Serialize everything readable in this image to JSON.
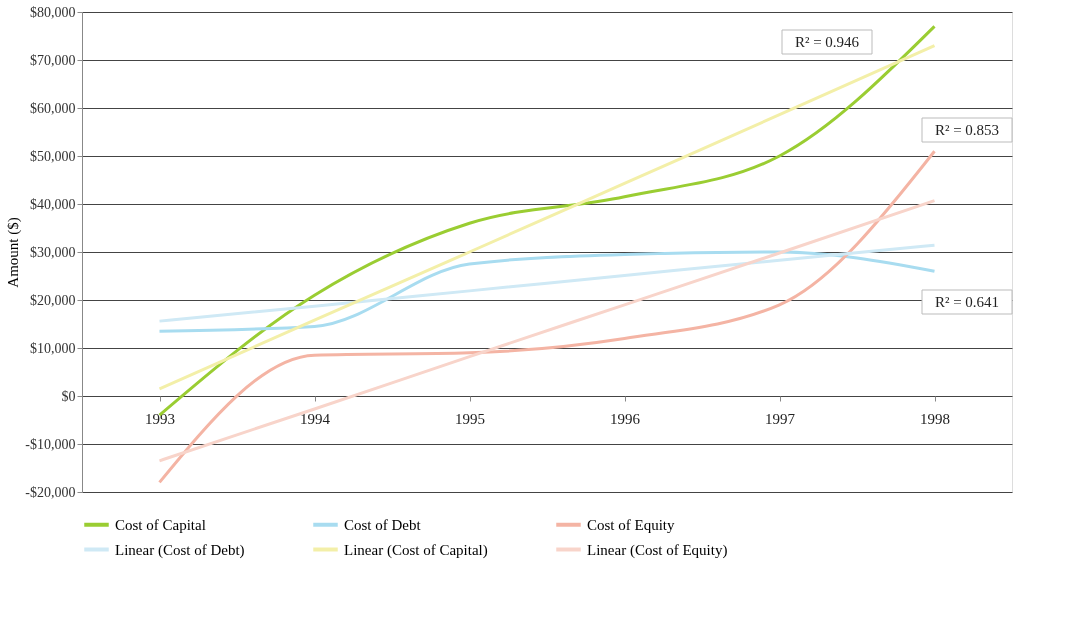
{
  "chart_data": {
    "type": "line",
    "ylabel": "Amount ($)",
    "categories": [
      "1993",
      "1994",
      "1995",
      "1996",
      "1997",
      "1998"
    ],
    "series": [
      {
        "name": "Cost of Capital",
        "color": "#9acd32",
        "values": [
          -4000,
          21000,
          36000,
          41500,
          50000,
          77000
        ]
      },
      {
        "name": "Cost of Debt",
        "color": "#a8dcf0",
        "values": [
          13500,
          14500,
          27500,
          29500,
          30000,
          26000
        ]
      },
      {
        "name": "Cost of Equity",
        "color": "#f4b4a4",
        "values": [
          -18000,
          8500,
          9000,
          12000,
          19000,
          51000
        ]
      },
      {
        "name": "Linear (Cost of Debt)",
        "color": "#cfe9f5",
        "values": [
          15600,
          18700,
          21900,
          25100,
          28300,
          31400
        ]
      },
      {
        "name": "Linear (Cost of Capital)",
        "color": "#f3efa8",
        "values": [
          1500,
          15800,
          30000,
          44300,
          58600,
          73000
        ]
      },
      {
        "name": "Linear (Cost of Equity)",
        "color": "#f8d4ca",
        "values": [
          -13500,
          -2700,
          8200,
          19000,
          29800,
          40700
        ]
      }
    ],
    "ylim": [
      -20000,
      80000
    ],
    "yticks": [
      {
        "value": -20000,
        "label": "-$20,000"
      },
      {
        "value": -10000,
        "label": "-$10,000"
      },
      {
        "value": 0,
        "label": "$0"
      },
      {
        "value": 10000,
        "label": "$10,000"
      },
      {
        "value": 20000,
        "label": "$20,000"
      },
      {
        "value": 30000,
        "label": "$30,000"
      },
      {
        "value": 40000,
        "label": "$40,000"
      },
      {
        "value": 50000,
        "label": "$50,000"
      },
      {
        "value": 60000,
        "label": "$60,000"
      },
      {
        "value": 70000,
        "label": "$70,000"
      },
      {
        "value": 80000,
        "label": "$80,000"
      }
    ],
    "annotations": [
      "R² = 0.946",
      "R² = 0.853",
      "R² = 0.641"
    ],
    "grid": "y",
    "legend": "bottom",
    "marker": "none",
    "line_style": "solid"
  }
}
